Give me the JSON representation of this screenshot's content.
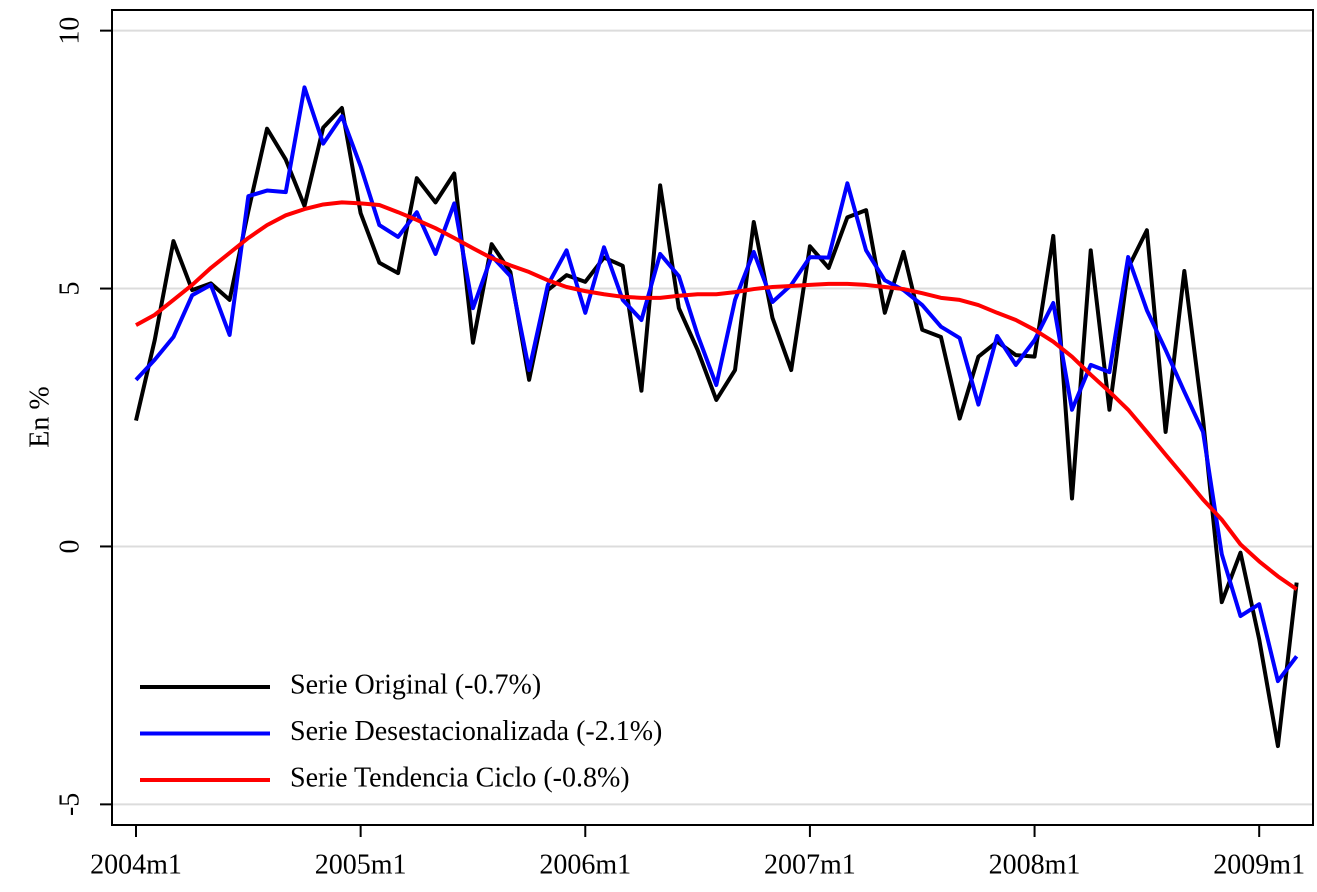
{
  "chart_data": {
    "type": "line",
    "y_label": "En %",
    "categories": [
      "2004m1",
      null,
      null,
      null,
      null,
      null,
      null,
      null,
      null,
      null,
      null,
      null,
      "2005m1",
      null,
      null,
      null,
      null,
      null,
      null,
      null,
      null,
      null,
      null,
      null,
      "2006m1",
      null,
      null,
      null,
      null,
      null,
      null,
      null,
      null,
      null,
      null,
      null,
      "2007m1",
      null,
      null,
      null,
      null,
      null,
      null,
      null,
      null,
      null,
      null,
      null,
      "2008m1",
      null,
      null,
      null,
      null,
      null,
      null,
      null,
      null,
      null,
      null,
      null,
      "2009m1",
      null,
      null
    ],
    "series": [
      {
        "name": "Serie Original (-0.7%)",
        "color": "#000000",
        "values": [
          2.44,
          4.0,
          5.92,
          4.97,
          5.1,
          4.78,
          6.5,
          8.1,
          7.5,
          6.6,
          8.12,
          8.5,
          6.46,
          5.5,
          5.3,
          7.14,
          6.67,
          7.23,
          3.95,
          5.86,
          5.32,
          3.23,
          4.97,
          5.26,
          5.13,
          5.6,
          5.44,
          3.02,
          7.0,
          4.62,
          3.81,
          2.84,
          3.42,
          6.29,
          4.43,
          3.42,
          5.82,
          5.4,
          6.38,
          6.52,
          4.53,
          5.71,
          4.2,
          4.06,
          2.48,
          3.68,
          3.97,
          3.71,
          3.68,
          6.02,
          0.93,
          5.74,
          2.65,
          5.4,
          6.13,
          2.22,
          5.34,
          2.46,
          -1.08,
          -0.12,
          -1.8,
          -3.87,
          -0.7
        ]
      },
      {
        "name": "Serie Desestacionalizada (-2.1%)",
        "color": "#0000ff",
        "values": [
          3.23,
          3.62,
          4.06,
          4.87,
          5.07,
          4.1,
          6.79,
          6.9,
          6.87,
          8.9,
          7.81,
          8.34,
          7.37,
          6.23,
          6.0,
          6.48,
          5.67,
          6.65,
          4.62,
          5.63,
          5.24,
          3.42,
          5.07,
          5.74,
          4.53,
          5.8,
          4.78,
          4.39,
          5.67,
          5.24,
          4.1,
          3.13,
          4.78,
          5.71,
          4.74,
          5.07,
          5.61,
          5.6,
          7.04,
          5.74,
          5.16,
          4.97,
          4.68,
          4.26,
          4.04,
          2.75,
          4.08,
          3.52,
          4.0,
          4.72,
          2.65,
          3.52,
          3.38,
          5.61,
          4.58,
          3.81,
          3.0,
          2.22,
          -0.15,
          -1.35,
          -1.12,
          -2.61,
          -2.13
        ]
      },
      {
        "name": "Serie Tendencia Ciclo (-0.8%)",
        "color": "#ff0000",
        "values": [
          4.29,
          4.49,
          4.78,
          5.07,
          5.4,
          5.69,
          5.98,
          6.23,
          6.42,
          6.54,
          6.63,
          6.67,
          6.65,
          6.62,
          6.48,
          6.33,
          6.17,
          5.98,
          5.78,
          5.59,
          5.45,
          5.32,
          5.16,
          5.03,
          4.95,
          4.89,
          4.84,
          4.82,
          4.82,
          4.86,
          4.89,
          4.89,
          4.93,
          4.99,
          5.03,
          5.05,
          5.07,
          5.09,
          5.09,
          5.07,
          5.03,
          4.99,
          4.91,
          4.82,
          4.78,
          4.68,
          4.53,
          4.39,
          4.2,
          3.97,
          3.68,
          3.33,
          3.0,
          2.65,
          2.22,
          1.78,
          1.35,
          0.91,
          0.52,
          0.04,
          -0.29,
          -0.58,
          -0.83
        ]
      }
    ],
    "ylim": [
      -5.4,
      10.4
    ],
    "yticks": [
      -5,
      0,
      5,
      10
    ],
    "grid": true,
    "legend": "lower left"
  }
}
